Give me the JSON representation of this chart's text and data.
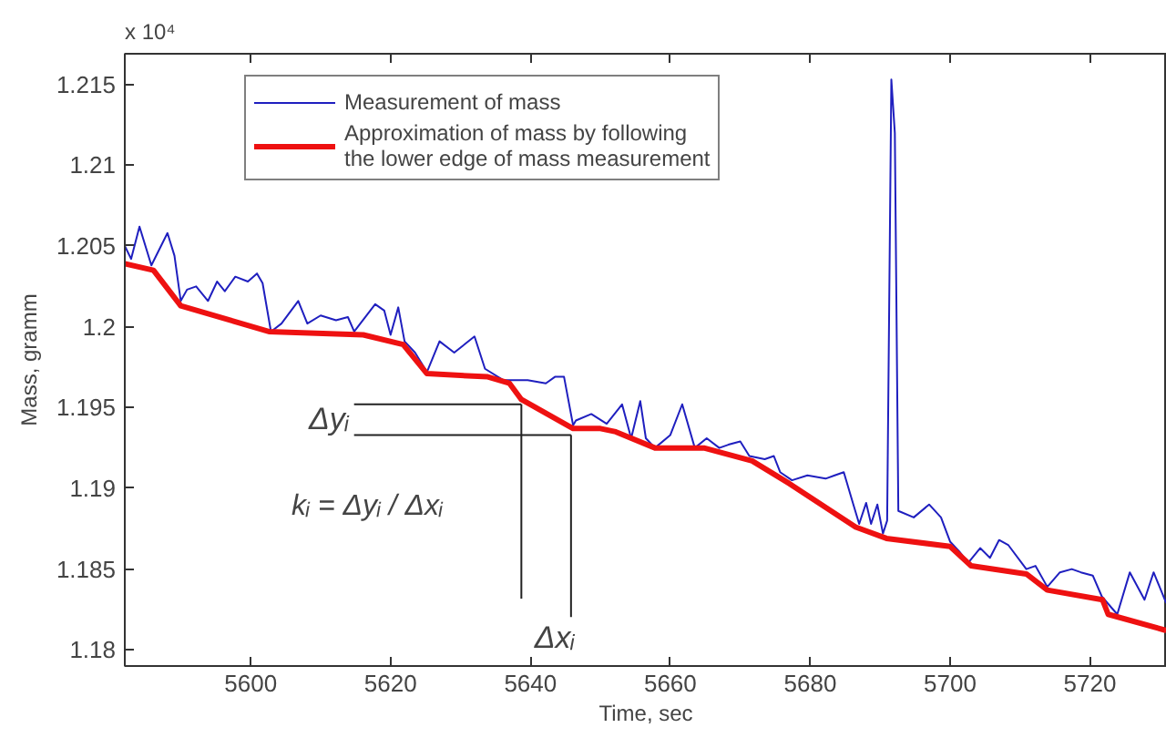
{
  "chart_data": {
    "type": "line",
    "xlabel": "Time, sec",
    "ylabel": "Mass, gramm",
    "xlim": [
      5582,
      5731
    ],
    "ylim": [
      1.179,
      1.2169
    ],
    "xticks": [
      5600,
      5620,
      5640,
      5660,
      5680,
      5700,
      5720
    ],
    "yticks": [
      1.18,
      1.185,
      1.19,
      1.195,
      1.2,
      1.205,
      1.21,
      1.215
    ],
    "grid": false,
    "legend": "top left",
    "series": [
      {
        "name": "Measurement of mass",
        "color": "#1f1fbf",
        "x": [
          5582,
          5582.9,
          5584.1,
          5585.8,
          5588.1,
          5589.1,
          5590,
          5590.9,
          5592.2,
          5593.9,
          5595.2,
          5596.3,
          5597.8,
          5599.6,
          5600.9,
          5601.7,
          5602.9,
          5604.4,
          5606.8,
          5608.1,
          5610,
          5612.2,
          5613.9,
          5614.8,
          5617.8,
          5619.1,
          5620,
          5621.1,
          5622,
          5623.5,
          5625.2,
          5627,
          5629.1,
          5632,
          5633.5,
          5636.1,
          5639.6,
          5642.2,
          5643.5,
          5644.8,
          5646.1,
          5646.5,
          5648.7,
          5650.9,
          5653.1,
          5654.4,
          5655.7,
          5656.5,
          5657.8,
          5660,
          5661.7,
          5663.5,
          5665.2,
          5667,
          5668.3,
          5670,
          5671.3,
          5673.5,
          5674.8,
          5675.7,
          5677.4,
          5679.6,
          5682.2,
          5683.5,
          5684.8,
          5686.1,
          5687,
          5688,
          5688.7,
          5689.6,
          5690.4,
          5691.0,
          5691.6,
          5692.1,
          5692.6,
          5694.8,
          5697,
          5698.7,
          5700,
          5701.3,
          5702.6,
          5704.3,
          5705.7,
          5707,
          5708.3,
          5710.9,
          5712.2,
          5713.9,
          5715.7,
          5717.4,
          5718.7,
          5720.4,
          5721.7,
          5723.9,
          5725.7,
          5727.8,
          5729.1,
          5730.9
        ],
        "values": [
          1.205,
          1.2042,
          1.2062,
          1.2038,
          1.2058,
          1.2044,
          1.2016,
          1.2023,
          1.2025,
          1.2016,
          1.2028,
          1.2022,
          1.2031,
          1.2028,
          1.2033,
          1.2027,
          1.1997,
          1.2002,
          1.2016,
          1.2002,
          1.2007,
          1.2004,
          1.2006,
          1.1997,
          1.2014,
          1.201,
          1.1995,
          1.2012,
          1.1991,
          1.1984,
          1.1972,
          1.1991,
          1.1984,
          1.1994,
          1.1974,
          1.1967,
          1.1967,
          1.1965,
          1.1969,
          1.1969,
          1.1939,
          1.1942,
          1.1946,
          1.194,
          1.1952,
          1.1931,
          1.1954,
          1.1931,
          1.1925,
          1.1933,
          1.1952,
          1.1925,
          1.1931,
          1.1925,
          1.1927,
          1.1929,
          1.192,
          1.1918,
          1.192,
          1.191,
          1.1905,
          1.1908,
          1.1906,
          1.1908,
          1.191,
          1.1891,
          1.1878,
          1.1891,
          1.1878,
          1.189,
          1.1872,
          1.188,
          1.2153,
          1.212,
          1.1886,
          1.1882,
          1.189,
          1.1882,
          1.1867,
          1.1861,
          1.1854,
          1.1863,
          1.1857,
          1.1868,
          1.1865,
          1.185,
          1.1852,
          1.1839,
          1.1848,
          1.185,
          1.1848,
          1.1846,
          1.1833,
          1.1822,
          1.1848,
          1.1831,
          1.1848,
          1.1829
        ]
      },
      {
        "name": "Approximation of mass by following\nthe lower edge of mass measurement",
        "color": "#ee1111",
        "x": [
          5582,
          5586.1,
          5590,
          5602.6,
          5616.1,
          5621.8,
          5625.2,
          5633.9,
          5637,
          5638.7,
          5646.1,
          5650,
          5652.2,
          5657.8,
          5664.8,
          5671.7,
          5677,
          5686.5,
          5690.9,
          5700,
          5703,
          5710.9,
          5713.9,
          5721.8,
          5722.6,
          5730.9
        ],
        "values": [
          1.2039,
          1.2035,
          1.2013,
          1.1997,
          1.1995,
          1.1989,
          1.1971,
          1.1969,
          1.1965,
          1.1955,
          1.1937,
          1.1937,
          1.1935,
          1.1925,
          1.1925,
          1.1917,
          1.1903,
          1.1876,
          1.1869,
          1.1864,
          1.1852,
          1.1847,
          1.1837,
          1.1831,
          1.1822,
          1.1812
        ]
      }
    ],
    "annotations": [
      "x 10⁴",
      {
        "text": "Δyᵢ",
        "x": 5638.7,
        "y": 1.1952
      },
      "kᵢ = Δyᵢ / Δxᵢ",
      {
        "text": "Δxᵢ",
        "x": 5645.8,
        "y": 1.1933
      }
    ]
  }
}
